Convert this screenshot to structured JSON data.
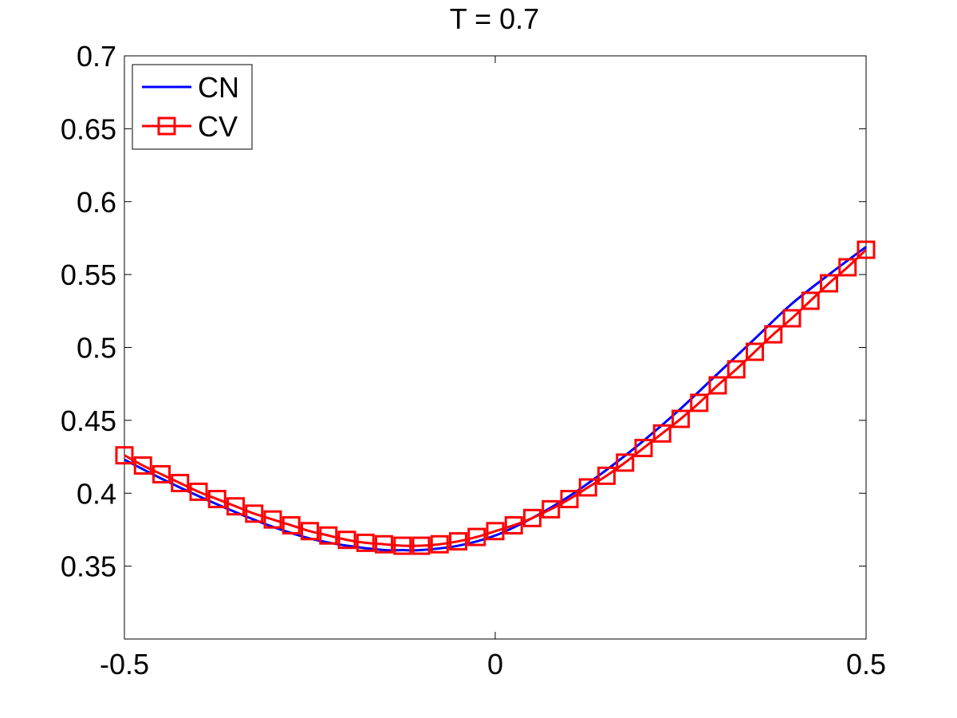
{
  "chart_data": {
    "type": "line",
    "title": "T = 0.7",
    "xlabel": "",
    "ylabel": "",
    "xlim": [
      -0.5,
      0.5
    ],
    "ylim": [
      0.3,
      0.7
    ],
    "x_ticks": [
      -0.5,
      0,
      0.5
    ],
    "x_tick_labels": [
      "-0.5",
      "0",
      "0.5"
    ],
    "y_ticks": [
      0.35,
      0.4,
      0.45,
      0.5,
      0.55,
      0.6,
      0.65,
      0.7
    ],
    "y_tick_labels": [
      "0.35",
      "0.4",
      "0.45",
      "0.5",
      "0.55",
      "0.6",
      "0.65",
      "0.7"
    ],
    "grid": false,
    "legend_position": "top-left",
    "series": [
      {
        "name": "CN",
        "color": "#0000ff",
        "marker": "none",
        "x": [
          -0.5,
          -0.45,
          -0.4,
          -0.35,
          -0.3,
          -0.25,
          -0.2,
          -0.15,
          -0.125,
          -0.1,
          -0.05,
          0,
          0.05,
          0.1,
          0.15,
          0.2,
          0.25,
          0.3,
          0.35,
          0.4,
          0.45,
          0.5
        ],
        "y": [
          0.423,
          0.41,
          0.398,
          0.387,
          0.377,
          0.369,
          0.364,
          0.361,
          0.361,
          0.361,
          0.364,
          0.371,
          0.383,
          0.398,
          0.416,
          0.436,
          0.458,
          0.482,
          0.506,
          0.53,
          0.55,
          0.569
        ]
      },
      {
        "name": "CV",
        "color": "#ff0000",
        "marker": "square",
        "x": [
          -0.5,
          -0.475,
          -0.45,
          -0.425,
          -0.4,
          -0.375,
          -0.35,
          -0.325,
          -0.3,
          -0.275,
          -0.25,
          -0.225,
          -0.2,
          -0.175,
          -0.15,
          -0.125,
          -0.1,
          -0.075,
          -0.05,
          -0.025,
          0,
          0.025,
          0.05,
          0.075,
          0.1,
          0.125,
          0.15,
          0.175,
          0.2,
          0.225,
          0.25,
          0.275,
          0.3,
          0.325,
          0.35,
          0.375,
          0.4,
          0.425,
          0.45,
          0.475,
          0.5
        ],
        "y": [
          0.426,
          0.419,
          0.413,
          0.407,
          0.401,
          0.396,
          0.391,
          0.386,
          0.382,
          0.378,
          0.374,
          0.371,
          0.368,
          0.366,
          0.365,
          0.364,
          0.364,
          0.365,
          0.367,
          0.37,
          0.374,
          0.378,
          0.383,
          0.389,
          0.396,
          0.404,
          0.412,
          0.421,
          0.431,
          0.441,
          0.451,
          0.462,
          0.474,
          0.485,
          0.497,
          0.509,
          0.52,
          0.532,
          0.544,
          0.555,
          0.567
        ]
      }
    ]
  }
}
